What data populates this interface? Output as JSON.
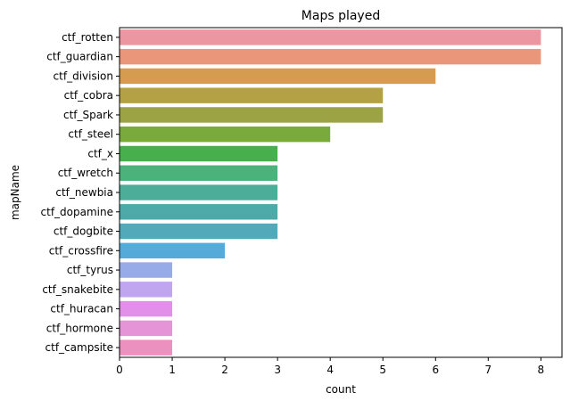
{
  "chart_data": {
    "type": "bar",
    "orientation": "horizontal",
    "title": "Maps played",
    "xlabel": "count",
    "ylabel": "mapName",
    "xlim": [
      0,
      8.4
    ],
    "xticks": [
      "0",
      "1",
      "2",
      "3",
      "4",
      "5",
      "6",
      "7",
      "8"
    ],
    "grid": false,
    "categories": [
      "ctf_rotten",
      "ctf_guardian",
      "ctf_division",
      "ctf_cobra",
      "ctf_Spark",
      "ctf_steel",
      "ctf_x",
      "ctf_wretch",
      "ctf_newbia",
      "ctf_dopamine",
      "ctf_dogbite",
      "ctf_crossfire",
      "ctf_tyrus",
      "ctf_snakebite",
      "ctf_huracan",
      "ctf_hormone",
      "ctf_campsite"
    ],
    "values": [
      8,
      8,
      6,
      5,
      5,
      4,
      3,
      3,
      3,
      3,
      3,
      2,
      1,
      1,
      1,
      1,
      1
    ],
    "colors": [
      "#ec96a1",
      "#e9967a",
      "#d59b4e",
      "#b4a145",
      "#9ba344",
      "#7aaa3c",
      "#47b04d",
      "#4bb27c",
      "#4cad98",
      "#4eaaa8",
      "#51a9ba",
      "#54aad9",
      "#97abe8",
      "#c0a6ee",
      "#e18fe8",
      "#e694d8",
      "#ec91bf"
    ]
  }
}
